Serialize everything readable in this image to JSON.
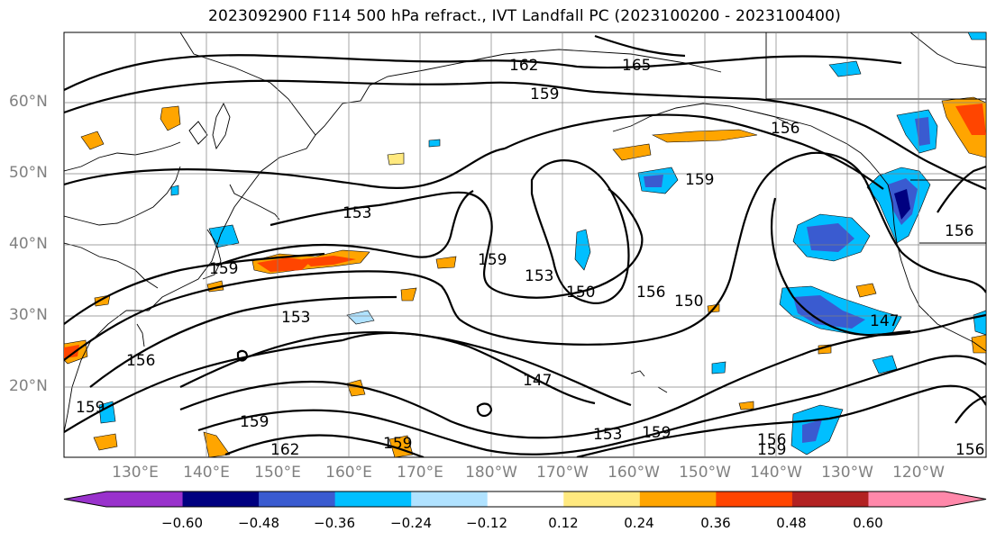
{
  "title": "2023092900 F114 500 hPa refract., IVT Landfall PC (2023100200 - 2023100400)",
  "lat_labels": [
    "60°N",
    "50°N",
    "40°N",
    "30°N",
    "20°N"
  ],
  "lon_labels": [
    "130°E",
    "140°E",
    "150°E",
    "160°E",
    "170°E",
    "180°W",
    "170°W",
    "160°W",
    "150°W",
    "140°W",
    "130°W",
    "120°W"
  ],
  "contour_labels": [
    "162",
    "165",
    "159",
    "156",
    "159",
    "153",
    "159",
    "153",
    "150",
    "156",
    "150",
    "147",
    "153",
    "156",
    "159",
    "147",
    "153",
    "159",
    "156",
    "159",
    "159",
    "162",
    "156",
    "159",
    "159",
    "156"
  ],
  "colorbar": {
    "ticks": [
      "−0.60",
      "−0.48",
      "−0.36",
      "−0.24",
      "−0.12",
      "0.12",
      "0.24",
      "0.36",
      "0.48",
      "0.60"
    ],
    "colors": [
      "#9932cc",
      "#000080",
      "#3a5bd0",
      "#00bfff",
      "#b0e2ff",
      "#ffffff",
      "#ffe97f",
      "#ffa500",
      "#ff4500",
      "#b22222",
      "#ff88aa",
      "#ff88aa"
    ]
  }
}
